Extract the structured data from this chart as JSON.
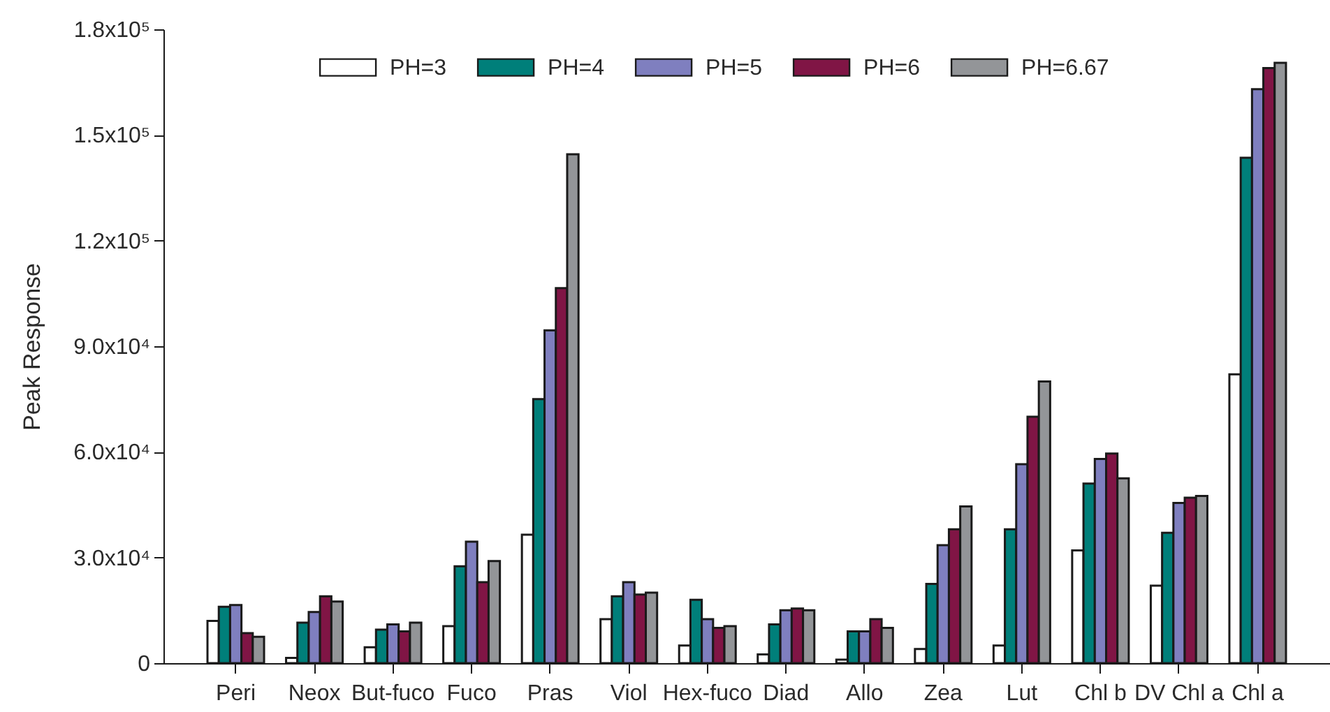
{
  "chart_data": {
    "type": "bar",
    "ylabel": "Peak Response",
    "categories": [
      "Peri",
      "Neox",
      "But-fuco",
      "Fuco",
      "Pras",
      "Viol",
      "Hex-fuco",
      "Diad",
      "Allo",
      "Zea",
      "Lut",
      "Chl b",
      "DV Chl a",
      "Chl a"
    ],
    "series": [
      {
        "name": "PH=3",
        "color": "#ffffff",
        "values": [
          12000,
          1500,
          4500,
          10500,
          36500,
          12500,
          5000,
          2500,
          1000,
          4000,
          5000,
          32000,
          22000,
          82000
        ]
      },
      {
        "name": "PH=4",
        "color": "#007f7a",
        "values": [
          16000,
          11500,
          9500,
          27500,
          75000,
          19000,
          18000,
          11000,
          9000,
          22500,
          38000,
          51000,
          37000,
          143500
        ]
      },
      {
        "name": "PH=5",
        "color": "#7f7fbf",
        "values": [
          16500,
          14500,
          11000,
          34500,
          94500,
          23000,
          12500,
          15000,
          9000,
          33500,
          56500,
          58000,
          45500,
          163000
        ]
      },
      {
        "name": "PH=6",
        "color": "#801545",
        "values": [
          8500,
          19000,
          9000,
          23000,
          106500,
          19500,
          10000,
          15500,
          12500,
          38000,
          70000,
          59500,
          47000,
          169000
        ]
      },
      {
        "name": "PH=6.67",
        "color": "#939598",
        "values": [
          7500,
          17500,
          11500,
          29000,
          144500,
          20000,
          10500,
          15000,
          10000,
          44500,
          80000,
          52500,
          47500,
          170500
        ]
      }
    ],
    "ylim": [
      0,
      180000
    ],
    "yticks": [
      0,
      {
        "value": 30000,
        "label": "3.0x10⁴"
      },
      {
        "value": 60000,
        "label": "6.0x10⁴"
      },
      {
        "value": 90000,
        "label": "9.0x10⁴"
      },
      {
        "value": 120000,
        "label": "1.2x10⁵"
      },
      {
        "value": 150000,
        "label": "1.5x10⁵"
      },
      {
        "value": 180000,
        "label": "1.8x10⁵"
      }
    ],
    "legend": "top"
  }
}
